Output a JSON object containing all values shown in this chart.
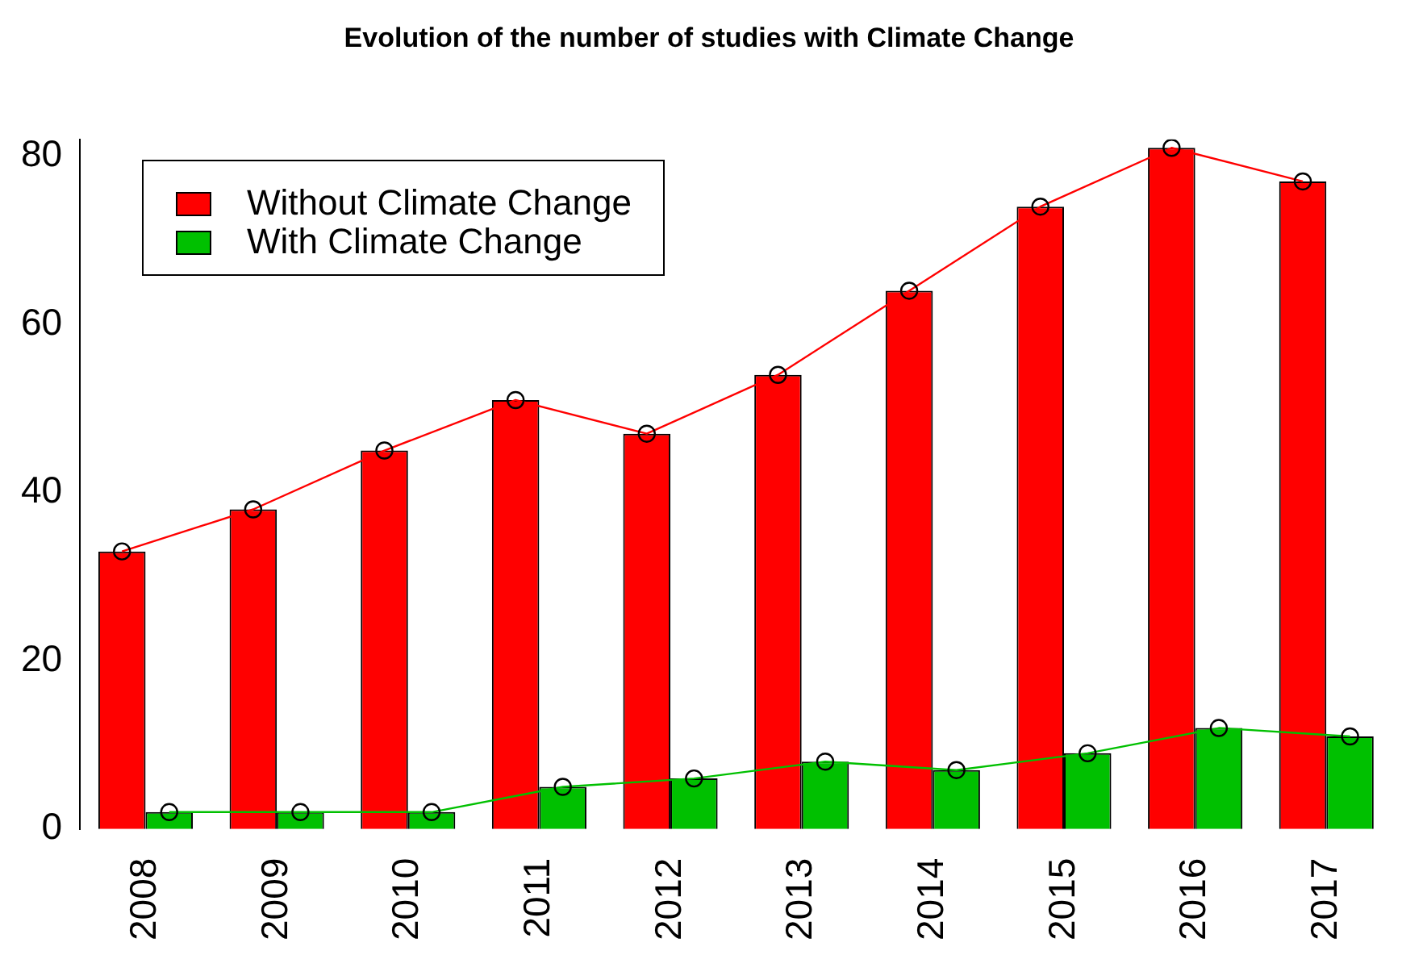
{
  "chart_data": {
    "type": "bar",
    "title": "Evolution of the number of studies with Climate Change",
    "categories": [
      "2008",
      "2009",
      "2010",
      "2011",
      "2012",
      "2013",
      "2014",
      "2015",
      "2016",
      "2017"
    ],
    "series": [
      {
        "name": "Without Climate Change",
        "color": "#ff0000",
        "values": [
          33,
          38,
          45,
          51,
          47,
          54,
          64,
          74,
          81,
          77
        ]
      },
      {
        "name": "With Climate Change",
        "color": "#00c000",
        "values": [
          2,
          2,
          2,
          5,
          6,
          8,
          7,
          9,
          12,
          11
        ]
      },
      {
        "type": "line",
        "color": "#ff0000",
        "values": [
          33,
          38,
          45,
          51,
          47,
          54,
          64,
          74,
          81,
          77
        ]
      },
      {
        "type": "line",
        "color": "#00c000",
        "values": [
          2,
          2,
          2,
          5,
          6,
          8,
          7,
          9,
          12,
          11
        ]
      }
    ],
    "ylim": [
      0,
      82
    ],
    "yticks": [
      0,
      20,
      40,
      60,
      80
    ],
    "grid": false,
    "legend": "top left",
    "marker": "circle"
  }
}
